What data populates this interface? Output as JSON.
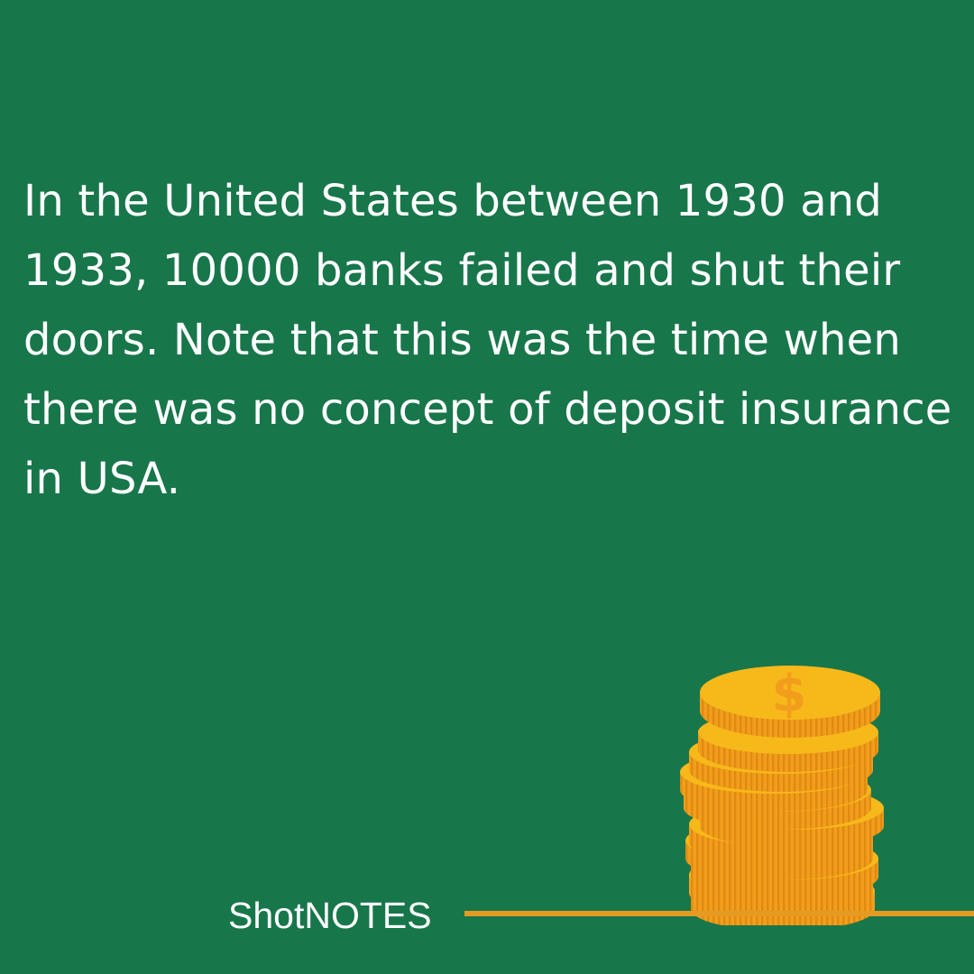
{
  "post": {
    "text": "In the United States between 1930 and 1933, 10000 banks failed and shut their doors. Note that this was the time when there was no concept of deposit insurance in USA.",
    "brand": "ShotNOTES"
  },
  "colors": {
    "background": "#18764b",
    "text": "#ffffff",
    "accent_line": "#e59a22",
    "coin_face": "#f7b91a",
    "coin_edge": "#f29e1c",
    "coin_ridge": "#e08a12"
  },
  "icons": {
    "coins": "coin-stack-icon",
    "dollar": "dollar-sign-icon"
  }
}
